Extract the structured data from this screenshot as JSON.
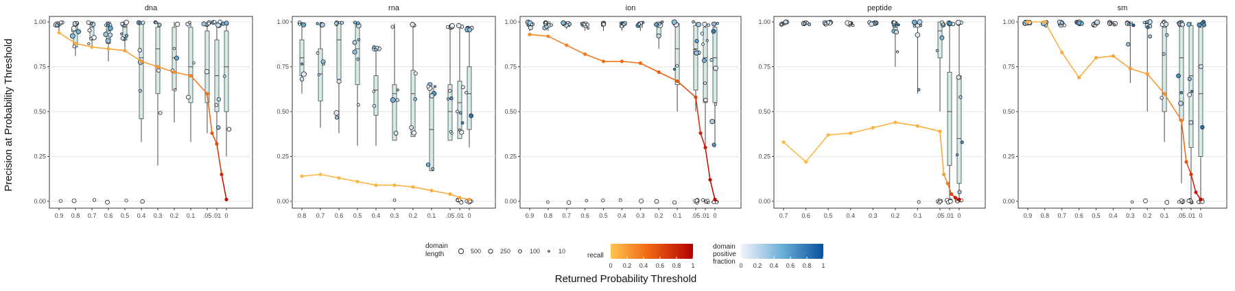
{
  "chart_data": {
    "type": "scatter",
    "ylabel": "Precision at Probability Threshold",
    "xlabel": "Returned Probability Threshold",
    "ylim": [
      0,
      1
    ],
    "y_ticks": [
      "0.00",
      "0.25",
      "0.50",
      "0.75",
      "1.00"
    ],
    "y_tick_values": [
      0,
      0.25,
      0.5,
      0.75,
      1
    ],
    "grid": true,
    "legend": {
      "size_title": [
        "domain",
        "length"
      ],
      "size_entries": [
        "500",
        "250",
        "100",
        "10"
      ],
      "recall_title": "recall",
      "recall_ticks": [
        "0",
        "0.2",
        "0.4",
        "0.6",
        "0.8",
        "1"
      ],
      "fraction_title": [
        "domain",
        "positive",
        "fraction"
      ],
      "fraction_ticks": [
        "0",
        "0.2",
        "0.4",
        "0.6",
        "0.8",
        "1"
      ]
    },
    "colors": {
      "recall_low": "#fec44f",
      "recall_mid": "#f16913",
      "recall_high": "#b30000",
      "fraction_low": "#f2f4fb",
      "fraction_high": "#08519c",
      "box_fill": "#d5ebea",
      "grid": "#e6e6e6"
    },
    "panels": [
      {
        "title": "dna",
        "thresholds": [
          0.9,
          0.8,
          0.7,
          0.6,
          0.5,
          0.4,
          0.3,
          0.2,
          0.1,
          0.05,
          0.01,
          0
        ],
        "x_ticks": [
          "0.9",
          "0.8",
          "0.7",
          "0.6",
          "0.5",
          "0.4",
          "0.3",
          "0.2",
          "0.1",
          ".05",
          ".01",
          "0"
        ],
        "precision_line": [
          0.94,
          0.88,
          0.86,
          0.85,
          0.84,
          0.78,
          0.75,
          0.72,
          0.7,
          0.6,
          0.38,
          0.32,
          0.15,
          0.01
        ],
        "line_recall": [
          0.1,
          0.12,
          0.13,
          0.15,
          0.17,
          0.2,
          0.22,
          0.25,
          0.3,
          0.4,
          0.55,
          0.6,
          0.8,
          0.95
        ],
        "boxes": [
          [
            0.95,
            0.98,
            1,
            1,
            1
          ],
          [
            0.81,
            0.86,
            0.95,
            1,
            1
          ],
          [
            0.86,
            0.9,
            0.97,
            1,
            1
          ],
          [
            0.78,
            0.88,
            0.95,
            1,
            1
          ],
          [
            0.85,
            0.9,
            0.97,
            1,
            1
          ],
          [
            0.33,
            0.46,
            0.8,
            1,
            1
          ],
          [
            0.2,
            0.6,
            0.85,
            0.97,
            1
          ],
          [
            0.44,
            0.62,
            0.8,
            0.97,
            1
          ],
          [
            0.33,
            0.55,
            0.75,
            0.97,
            1
          ],
          [
            0.38,
            0.55,
            0.72,
            0.95,
            1
          ],
          [
            0.32,
            0.5,
            0.7,
            0.9,
            1
          ],
          [
            0.25,
            0.5,
            0.75,
            0.95,
            1
          ]
        ],
        "zero_points": [
          0,
          1,
          2,
          3,
          4,
          5
        ]
      },
      {
        "title": "rna",
        "thresholds": [
          0.8,
          0.7,
          0.6,
          0.5,
          0.4,
          0.3,
          0.2,
          0.1,
          0.05,
          0.01,
          0
        ],
        "x_ticks": [
          "0.8",
          "0.7",
          "0.6",
          "0.5",
          "0.4",
          "0.3",
          "0.2",
          "0.1",
          ".05",
          ".01",
          "0"
        ],
        "precision_line": [
          0.14,
          0.15,
          0.13,
          0.11,
          0.09,
          0.09,
          0.08,
          0.06,
          0.04,
          0.02,
          0.01
        ],
        "line_recall": [
          0.05,
          0.05,
          0.06,
          0.07,
          0.08,
          0.09,
          0.1,
          0.12,
          0.14,
          0.15,
          0.16
        ],
        "boxes": [
          [
            0.6,
            0.7,
            0.8,
            0.9,
            1
          ],
          [
            0.41,
            0.56,
            0.71,
            0.85,
            1
          ],
          [
            0.38,
            0.68,
            0.9,
            0.99,
            1
          ],
          [
            0.31,
            0.65,
            0.85,
            0.99,
            1
          ],
          [
            0.31,
            0.48,
            0.62,
            0.7,
            0.86
          ],
          [
            0.35,
            0.34,
            0.6,
            0.65,
            0.99
          ],
          [
            0.36,
            0.36,
            0.6,
            0.73,
            0.99
          ],
          [
            0.17,
            0.17,
            0.4,
            0.63,
            0.65
          ],
          [
            0.34,
            0.34,
            0.5,
            0.65,
            0.99
          ],
          [
            0.35,
            0.35,
            0.55,
            0.67,
            0.99
          ],
          [
            0.3,
            0.4,
            0.6,
            0.75,
            0.97
          ]
        ],
        "zero_points": [
          5,
          9,
          10
        ]
      },
      {
        "title": "ion",
        "thresholds": [
          0.9,
          0.8,
          0.7,
          0.6,
          0.5,
          0.4,
          0.3,
          0.2,
          0.1,
          0.05,
          0.01,
          0
        ],
        "x_ticks": [
          "0.9",
          "0.8",
          "0.7",
          "0.6",
          "0.5",
          "0.4",
          "0.3",
          "0.2",
          "0.1",
          ".05",
          ".01",
          "0"
        ],
        "precision_line": [
          0.93,
          0.92,
          0.87,
          0.82,
          0.78,
          0.78,
          0.77,
          0.72,
          0.67,
          0.58,
          0.38,
          0.3,
          0.12,
          0.01
        ],
        "line_recall": [
          0.3,
          0.32,
          0.35,
          0.38,
          0.4,
          0.42,
          0.45,
          0.5,
          0.55,
          0.65,
          0.8,
          0.85,
          0.92,
          0.97
        ],
        "boxes": [
          [
            0.95,
            0.98,
            1,
            1,
            1
          ],
          [
            0.95,
            0.97,
            0.99,
            1,
            1
          ],
          [
            0.96,
            0.98,
            0.99,
            1,
            1
          ],
          [
            0.95,
            0.97,
            0.99,
            1,
            1
          ],
          [
            0.95,
            0.98,
            0.99,
            1,
            1
          ],
          [
            0.95,
            0.97,
            0.99,
            1,
            1
          ],
          [
            0.95,
            0.97,
            0.99,
            1,
            1
          ],
          [
            0.85,
            0.93,
            0.97,
            1,
            1
          ],
          [
            0.5,
            0.65,
            0.85,
            0.99,
            1
          ],
          [
            0.5,
            0.62,
            0.85,
            0.98,
            1
          ],
          [
            0.3,
            0.55,
            0.8,
            0.97,
            1
          ],
          [
            0.3,
            0.55,
            0.8,
            0.97,
            1
          ]
        ],
        "zero_points": [
          1,
          2,
          3,
          4,
          5,
          6,
          7,
          8,
          9,
          10,
          11
        ]
      },
      {
        "title": "peptide",
        "thresholds": [
          0.7,
          0.6,
          0.5,
          0.4,
          0.3,
          0.2,
          0.1,
          0.05,
          0.01,
          0
        ],
        "x_ticks": [
          "0.7",
          "0.6",
          "0.5",
          "0.4",
          "0.3",
          "0.2",
          "0.1",
          ".05",
          ".01",
          "0"
        ],
        "precision_line": [
          0.33,
          0.22,
          0.37,
          0.38,
          0.41,
          0.44,
          0.42,
          0.39,
          0.15,
          0.1,
          0.04,
          0.02,
          0.01
        ],
        "line_recall": [
          0.05,
          0.05,
          0.06,
          0.07,
          0.08,
          0.09,
          0.1,
          0.12,
          0.2,
          0.35,
          0.6,
          0.85,
          0.97
        ],
        "boxes": [
          [
            0.99,
            0.99,
            1,
            1,
            1
          ],
          [
            0.99,
            0.99,
            1,
            1,
            1
          ],
          [
            0.99,
            0.99,
            1,
            1,
            1
          ],
          [
            0.99,
            0.99,
            1,
            1,
            1
          ],
          [
            0.99,
            0.99,
            1,
            1,
            1
          ],
          [
            0.75,
            0.94,
            0.97,
            1,
            1
          ],
          [
            0.6,
            0.97,
            0.99,
            1,
            1
          ],
          [
            0.5,
            0.8,
            0.95,
            1,
            1
          ],
          [
            0.0,
            0.2,
            0.5,
            0.72,
            1
          ],
          [
            0.0,
            0.1,
            0.35,
            0.7,
            1
          ]
        ],
        "zero_points": [
          6,
          7,
          8,
          9
        ]
      },
      {
        "title": "sm",
        "thresholds": [
          0.9,
          0.8,
          0.7,
          0.6,
          0.5,
          0.4,
          0.3,
          0.2,
          0.1,
          0.05,
          0.01,
          0
        ],
        "x_ticks": [
          "0.9",
          "0.8",
          "0.7",
          "0.6",
          "0.5",
          "0.4",
          "0.3",
          "0.2",
          "0.1",
          ".05",
          ".01",
          "0"
        ],
        "precision_line": [
          1.0,
          1.0,
          0.83,
          0.69,
          0.8,
          0.81,
          0.74,
          0.71,
          0.6,
          0.45,
          0.22,
          0.15,
          0.05,
          0.01
        ],
        "line_recall": [
          0.1,
          0.1,
          0.12,
          0.13,
          0.15,
          0.16,
          0.18,
          0.2,
          0.25,
          0.35,
          0.55,
          0.7,
          0.85,
          0.97
        ],
        "boxes": [
          [
            0.99,
            0.99,
            1,
            1,
            1
          ],
          [
            0.99,
            0.99,
            1,
            1,
            1
          ],
          [
            0.99,
            0.99,
            1,
            1,
            1
          ],
          [
            0.99,
            0.99,
            1,
            1,
            1
          ],
          [
            0.99,
            0.99,
            1,
            1,
            1
          ],
          [
            0.99,
            0.99,
            1,
            1,
            1
          ],
          [
            0.66,
            0.98,
            0.99,
            1,
            1
          ],
          [
            0.5,
            0.97,
            0.99,
            1,
            1
          ],
          [
            0.33,
            0.5,
            0.97,
            1,
            1
          ],
          [
            0.1,
            0.45,
            0.8,
            0.99,
            1
          ],
          [
            0.0,
            0.3,
            0.7,
            0.98,
            1
          ],
          [
            0.0,
            0.25,
            0.6,
            0.97,
            1
          ]
        ],
        "zero_points": [
          6,
          7,
          8,
          9,
          10,
          11
        ]
      }
    ]
  }
}
